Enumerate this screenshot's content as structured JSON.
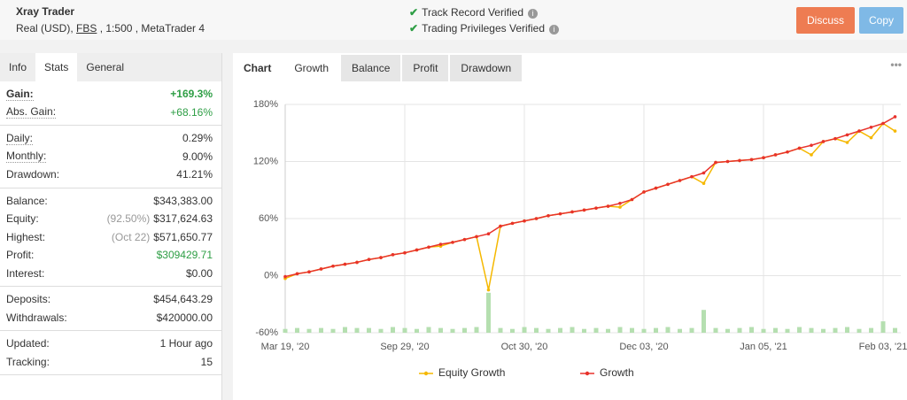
{
  "header": {
    "title": "Xray Trader",
    "account": [
      "Real (USD),",
      "FBS",
      ", 1:500 , MetaTrader 4"
    ],
    "verified": [
      "Track Record Verified",
      "Trading Privileges Verified"
    ],
    "buttons": [
      "Discuss",
      "Copy"
    ]
  },
  "left_tabs": {
    "items": [
      "Info",
      "Stats",
      "General"
    ],
    "active": 1
  },
  "stats": [
    [
      {
        "label": "Gain:",
        "value": "+169.3%",
        "color": "#2e9e45",
        "bold": true
      },
      {
        "label": "Abs. Gain:",
        "value": "+68.16%",
        "color": "#2e9e45"
      }
    ],
    [
      {
        "label": "Daily:",
        "value": "0.29%"
      },
      {
        "label": "Monthly:",
        "value": "9.00%"
      },
      {
        "label": "Drawdown:",
        "value": "41.21%"
      }
    ],
    [
      {
        "label": "Balance:",
        "value": "$343,383.00"
      },
      {
        "label": "Equity:",
        "note": "(92.50%)",
        "value": "$317,624.63"
      },
      {
        "label": "Highest:",
        "note": "(Oct 22)",
        "value": "$571,650.77"
      },
      {
        "label": "Profit:",
        "value": "$309429.71",
        "color": "#2e9e45"
      },
      {
        "label": "Interest:",
        "value": "$0.00"
      }
    ],
    [
      {
        "label": "Deposits:",
        "value": "$454,643.29"
      },
      {
        "label": "Withdrawals:",
        "value": "$420000.00"
      }
    ],
    [
      {
        "label": "Updated:",
        "value": "1 Hour ago"
      },
      {
        "label": "Tracking:",
        "value": "15"
      }
    ]
  ],
  "chart_tabs": {
    "items": [
      "Chart",
      "Growth",
      "Balance",
      "Profit",
      "Drawdown"
    ],
    "active": 1
  },
  "chart_data": {
    "type": "line",
    "categories": [
      "Mar 19, '20",
      null,
      null,
      null,
      null,
      null,
      null,
      null,
      null,
      null,
      "Sep 29, '20",
      null,
      null,
      null,
      null,
      null,
      null,
      null,
      null,
      null,
      "Oct 30, '20",
      null,
      null,
      null,
      null,
      null,
      null,
      null,
      null,
      null,
      "Dec 03, '20",
      null,
      null,
      null,
      null,
      null,
      null,
      null,
      null,
      null,
      "Jan 05, '21",
      null,
      null,
      null,
      null,
      null,
      null,
      null,
      null,
      null,
      "Feb 03, '21",
      null
    ],
    "series": [
      {
        "name": "Equity Growth",
        "color": "#f5b800",
        "values": [
          -3,
          2,
          4,
          7,
          10,
          12,
          14,
          17,
          19,
          22,
          24,
          27,
          30,
          31,
          35,
          38,
          41,
          -15,
          52,
          55,
          57.5,
          60,
          63,
          65,
          67,
          69,
          71,
          73,
          72,
          80,
          88,
          92,
          96,
          100,
          104,
          97,
          119,
          120,
          121,
          122,
          124,
          127,
          130,
          134,
          127,
          141,
          144,
          140,
          152,
          145,
          160,
          152
        ]
      },
      {
        "name": "Growth",
        "color": "#e8322b",
        "values": [
          -1,
          2,
          4,
          7,
          10,
          12,
          14,
          17,
          19,
          22,
          24,
          27,
          30,
          33,
          35,
          38,
          41,
          44,
          52,
          55,
          57.5,
          60,
          63,
          65,
          67,
          69,
          71,
          73,
          76,
          80,
          88,
          92,
          96,
          100,
          104,
          108,
          119,
          120,
          121,
          122,
          124,
          127,
          130,
          134,
          137,
          141,
          144,
          148,
          152,
          156,
          160,
          167
        ]
      }
    ],
    "bars": {
      "color": "#b5dfb0",
      "values": [
        4,
        5,
        4,
        5,
        4,
        6,
        5,
        5,
        4,
        6,
        5,
        4,
        6,
        5,
        4,
        5,
        6,
        42,
        5,
        4,
        6,
        5,
        4,
        5,
        6,
        4,
        5,
        4,
        6,
        5,
        4,
        5,
        6,
        4,
        5,
        24,
        5,
        4,
        5,
        6,
        4,
        5,
        4,
        6,
        5,
        4,
        5,
        6,
        4,
        5,
        12,
        5
      ]
    },
    "ylim": [
      -60,
      180
    ],
    "yticks": [
      {
        "value": -60,
        "label": "-60%"
      },
      {
        "value": 0,
        "label": "0%"
      },
      {
        "value": 60,
        "label": "60%"
      },
      {
        "value": 120,
        "label": "120%"
      },
      {
        "value": 180,
        "label": "180%"
      }
    ],
    "grid": true
  }
}
